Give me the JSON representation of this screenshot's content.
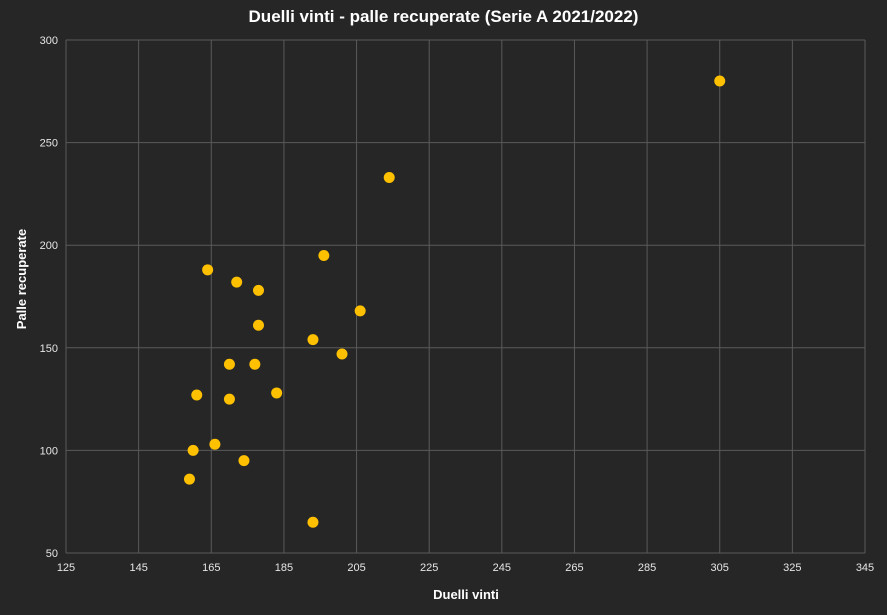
{
  "chart_data": {
    "type": "scatter",
    "title": "Duelli vinti - palle recuperate (Serie A 2021/2022)",
    "xlabel": "Duelli vinti",
    "ylabel": "Palle recuperate",
    "xlim": [
      125,
      345
    ],
    "ylim": [
      50,
      300
    ],
    "xticks": [
      125,
      145,
      165,
      185,
      205,
      225,
      245,
      265,
      285,
      305,
      325,
      345
    ],
    "yticks": [
      50,
      100,
      150,
      200,
      250,
      300
    ],
    "grid": true,
    "legend": "none",
    "point_color": "#FFC000",
    "points": [
      {
        "x": 305,
        "y": 280
      },
      {
        "x": 214,
        "y": 233
      },
      {
        "x": 196,
        "y": 195
      },
      {
        "x": 164,
        "y": 188
      },
      {
        "x": 172,
        "y": 182
      },
      {
        "x": 178,
        "y": 178
      },
      {
        "x": 206,
        "y": 168
      },
      {
        "x": 178,
        "y": 161
      },
      {
        "x": 193,
        "y": 154
      },
      {
        "x": 201,
        "y": 147
      },
      {
        "x": 170,
        "y": 142
      },
      {
        "x": 177,
        "y": 142
      },
      {
        "x": 183,
        "y": 128
      },
      {
        "x": 161,
        "y": 127
      },
      {
        "x": 170,
        "y": 125
      },
      {
        "x": 166,
        "y": 103
      },
      {
        "x": 160,
        "y": 100
      },
      {
        "x": 174,
        "y": 95
      },
      {
        "x": 159,
        "y": 86
      },
      {
        "x": 193,
        "y": 65
      }
    ]
  }
}
